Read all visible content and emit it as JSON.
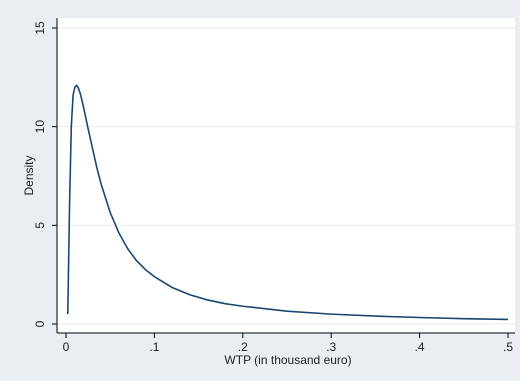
{
  "colors": {
    "outer_background": "#e9eef2",
    "plot_background": "#ffffff",
    "grid": "#e9eef2",
    "curve": "#1a476f",
    "axis": "#000000"
  },
  "chart_data": {
    "type": "line",
    "title": "",
    "xlabel": "WTP (in thousand euro)",
    "ylabel": "Density",
    "xlim": [
      0,
      0.5
    ],
    "ylim": [
      0,
      15
    ],
    "grid": true,
    "grid_axis": "y",
    "legend": "none",
    "x_ticks": [
      0,
      0.1,
      0.2,
      0.3,
      0.4,
      0.5
    ],
    "x_tick_labels": [
      "0",
      ".1",
      ".2",
      ".3",
      ".4",
      ".5"
    ],
    "y_ticks": [
      0,
      5,
      10,
      15
    ],
    "y_tick_labels": [
      "0",
      "5",
      "10",
      "15"
    ],
    "series": [
      {
        "x": [
          0.002,
          0.004,
          0.006,
          0.008,
          0.01,
          0.012,
          0.014,
          0.016,
          0.018,
          0.02,
          0.025,
          0.03,
          0.035,
          0.04,
          0.05,
          0.06,
          0.07,
          0.08,
          0.09,
          0.1,
          0.12,
          0.14,
          0.16,
          0.18,
          0.2,
          0.25,
          0.3,
          0.35,
          0.4,
          0.45,
          0.5
        ],
        "y": [
          0.5,
          6.0,
          10.0,
          11.6,
          12.0,
          12.1,
          11.95,
          11.7,
          11.35,
          10.95,
          9.9,
          8.9,
          7.9,
          7.05,
          5.65,
          4.6,
          3.8,
          3.2,
          2.75,
          2.4,
          1.85,
          1.48,
          1.22,
          1.03,
          0.9,
          0.65,
          0.5,
          0.4,
          0.33,
          0.27,
          0.23
        ]
      }
    ]
  }
}
